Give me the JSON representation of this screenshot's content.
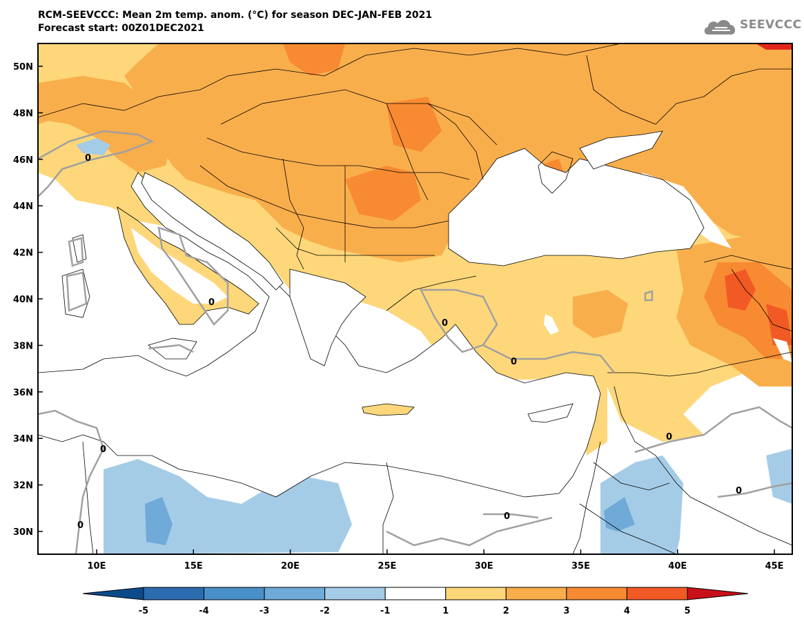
{
  "header": {
    "title": "RCM-SEEVCCC: Mean 2m temp. anom. (°C) for season DEC-JAN-FEB 2021",
    "subtitle": "Forecast start: 00Z01DEC2021"
  },
  "logo": {
    "text": "SEEVCCC",
    "icon": "cloud-icon"
  },
  "map": {
    "lon_ticks": [
      "10E",
      "15E",
      "20E",
      "25E",
      "30E",
      "35E",
      "40E",
      "45E"
    ],
    "lat_ticks": [
      "50N",
      "48N",
      "46N",
      "44N",
      "42N",
      "40N",
      "38N",
      "36N",
      "34N",
      "32N",
      "30N"
    ],
    "contour_zero_label": "0",
    "extent": {
      "lon": [
        7,
        46
      ],
      "lat": [
        29,
        51
      ]
    }
  },
  "colorbar": {
    "tick_labels": [
      "-5",
      "-4",
      "-3",
      "-2",
      "-1",
      "1",
      "2",
      "3",
      "4",
      "5"
    ],
    "colors": [
      "#0d4a8a",
      "#2b6cb0",
      "#4a90c8",
      "#6faad8",
      "#a5cce6",
      "#ffffff",
      "#fdd77a",
      "#f9ae4c",
      "#f88a32",
      "#f25a25",
      "#e2281c",
      "#c8101a"
    ]
  },
  "colors": {
    "land_stroke": "#000000",
    "contour": "#a0a0a0",
    "white_zone": "#ffffff"
  }
}
